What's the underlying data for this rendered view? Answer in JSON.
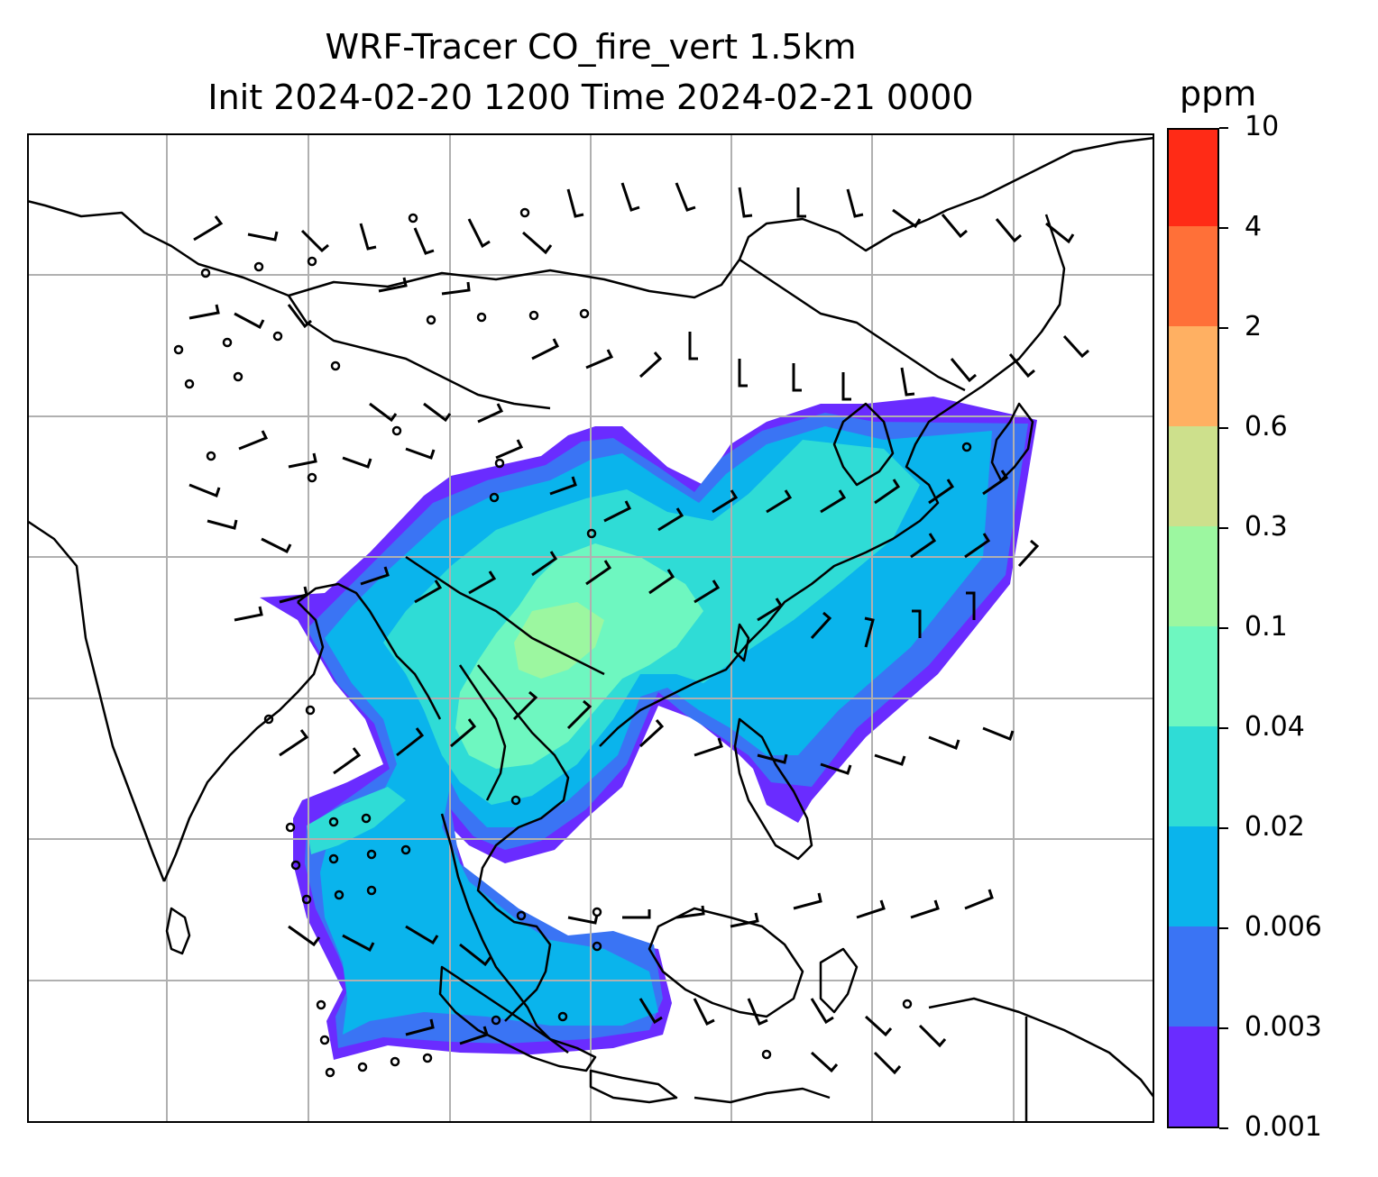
{
  "title": {
    "line1": "WRF-Tracer CO_fire_vert 1.5km",
    "line2": "Init 2024-02-20 1200 Time 2024-02-21 0000"
  },
  "colorbar": {
    "unit": "ppm",
    "levels": [
      "0.001",
      "0.003",
      "0.006",
      "0.02",
      "0.04",
      "0.1",
      "0.3",
      "0.6",
      "2",
      "4",
      "10"
    ],
    "colors": [
      "#6a2cff",
      "#3a74f4",
      "#0ab4ec",
      "#2fdcd6",
      "#6ef7c0",
      "#9cf7a0",
      "#cde08c",
      "#ffb062",
      "#ff7038",
      "#ff2b16"
    ]
  },
  "map": {
    "gridline_color": "#b0b0b0",
    "coastline_color": "#000000",
    "plume_fill_colors": {
      "outer": "#6a2cff",
      "low": "#3a74f4",
      "mid": "#0ab4ec",
      "higher": "#2fdcd6",
      "core": "#6ef7c0",
      "peak": "#9cf7a0"
    },
    "wind_barb_color": "#000000"
  }
}
